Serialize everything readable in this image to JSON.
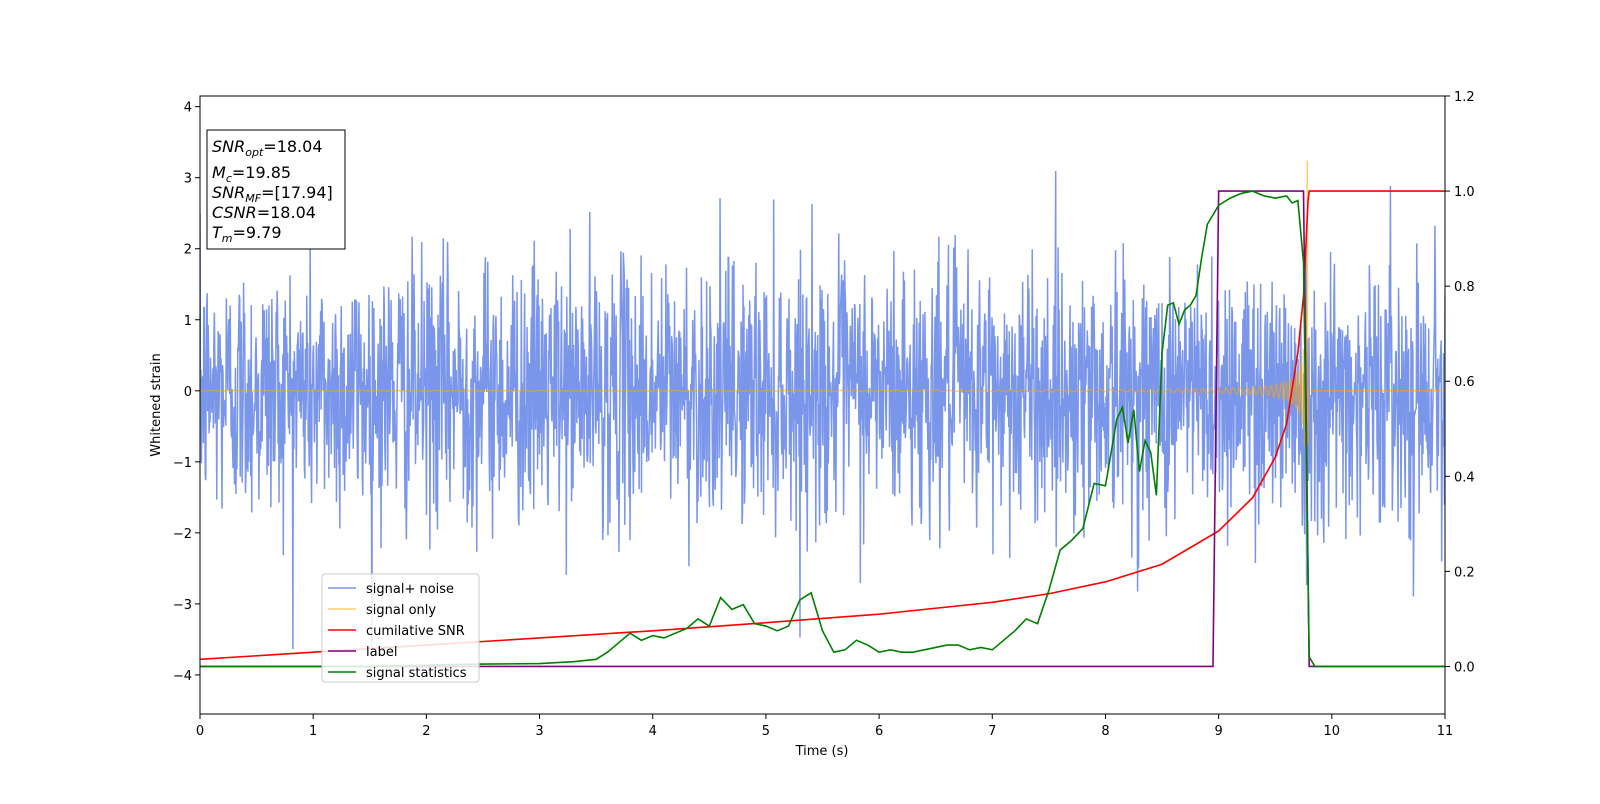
{
  "chart_data": {
    "type": "line",
    "xlabel": "Time (s)",
    "ylabel": "Whitened strain",
    "xlim": [
      0,
      11
    ],
    "ylim": [
      -4.55,
      4.15
    ],
    "y2lim": [
      -0.1,
      1.2
    ],
    "grid": false,
    "legend_position": "lower-left",
    "xticks": [
      "0",
      "1",
      "2",
      "3",
      "4",
      "5",
      "6",
      "7",
      "8",
      "9",
      "10",
      "11"
    ],
    "xtick_values": [
      0,
      1,
      2,
      3,
      4,
      5,
      6,
      7,
      8,
      9,
      10,
      11
    ],
    "yticks": [
      "4",
      "3",
      "2",
      "1",
      "0",
      "−1",
      "−2",
      "−3",
      "−4"
    ],
    "ytick_values": [
      4,
      3,
      2,
      1,
      0,
      -1,
      -2,
      -3,
      -4
    ],
    "y2ticks": [
      "1.2",
      "1.0",
      "0.8",
      "0.6",
      "0.4",
      "0.2",
      "0.0"
    ],
    "y2tick_values": [
      1.2,
      1.0,
      0.8,
      0.6,
      0.4,
      0.2,
      0.0
    ],
    "annotation": {
      "snr_opt": {
        "base": "SNR",
        "sub": "opt",
        "value": "=18.04"
      },
      "mc": {
        "base": "M",
        "sub": "c",
        "value": "=19.85"
      },
      "snr_mf": {
        "base": "SNR",
        "sub": "MF",
        "value": "=[17.94]"
      },
      "csnr": {
        "base": "CSNR",
        "sub": "",
        "value": "=18.04"
      },
      "tm": {
        "base": "T",
        "sub": "m",
        "value": "=9.79"
      }
    },
    "series": [
      {
        "name": "signal+ noise",
        "color": "#4169e1",
        "axis": "left",
        "kind": "noise",
        "sigma": 0.9,
        "peak": 3.55,
        "merger_time": 9.79
      },
      {
        "name": "signal only",
        "color": "#ffa500",
        "axis": "left",
        "kind": "chirp",
        "peak": 3.62,
        "merger_time": 9.79
      },
      {
        "name": "cumilative SNR",
        "color": "#ff0000",
        "axis": "right",
        "x": [
          0,
          1,
          2,
          3,
          4,
          5,
          6,
          7,
          7.5,
          8,
          8.5,
          9,
          9.3,
          9.5,
          9.6,
          9.7,
          9.75,
          9.79,
          9.8,
          11
        ],
        "y": [
          0.015,
          0.03,
          0.045,
          0.06,
          0.075,
          0.092,
          0.11,
          0.135,
          0.153,
          0.178,
          0.215,
          0.285,
          0.355,
          0.44,
          0.51,
          0.66,
          0.78,
          0.98,
          1.0,
          1.0
        ]
      },
      {
        "name": "label",
        "color": "#800080",
        "axis": "right",
        "x": [
          0,
          8.95,
          9.0,
          9.75,
          9.8,
          11
        ],
        "y": [
          0.0,
          0.0,
          1.0,
          1.0,
          0.0,
          0.0
        ]
      },
      {
        "name": "signal statistics",
        "color": "#008000",
        "axis": "right",
        "x": [
          0,
          0.5,
          1,
          1.5,
          2,
          2.5,
          3,
          3.3,
          3.5,
          3.6,
          3.7,
          3.8,
          3.9,
          4.0,
          4.1,
          4.2,
          4.3,
          4.4,
          4.5,
          4.6,
          4.7,
          4.8,
          4.9,
          5.0,
          5.1,
          5.2,
          5.3,
          5.4,
          5.5,
          5.6,
          5.7,
          5.8,
          5.9,
          6.0,
          6.1,
          6.2,
          6.3,
          6.4,
          6.5,
          6.6,
          6.7,
          6.8,
          6.9,
          7.0,
          7.1,
          7.2,
          7.3,
          7.4,
          7.5,
          7.6,
          7.7,
          7.8,
          7.9,
          8.0,
          8.1,
          8.15,
          8.2,
          8.25,
          8.3,
          8.35,
          8.4,
          8.45,
          8.5,
          8.55,
          8.6,
          8.65,
          8.7,
          8.75,
          8.8,
          8.85,
          8.9,
          8.95,
          9.0,
          9.1,
          9.2,
          9.3,
          9.4,
          9.5,
          9.6,
          9.65,
          9.7,
          9.75,
          9.8,
          9.85,
          9.9,
          10.0,
          11
        ],
        "y": [
          0.0,
          0.0,
          0.0,
          0.0,
          0.003,
          0.005,
          0.006,
          0.01,
          0.015,
          0.03,
          0.05,
          0.07,
          0.055,
          0.065,
          0.06,
          0.07,
          0.08,
          0.1,
          0.085,
          0.145,
          0.12,
          0.13,
          0.09,
          0.085,
          0.075,
          0.085,
          0.14,
          0.155,
          0.075,
          0.03,
          0.035,
          0.055,
          0.045,
          0.03,
          0.035,
          0.03,
          0.03,
          0.035,
          0.04,
          0.045,
          0.045,
          0.035,
          0.04,
          0.035,
          0.055,
          0.075,
          0.1,
          0.09,
          0.16,
          0.245,
          0.265,
          0.29,
          0.385,
          0.38,
          0.52,
          0.545,
          0.47,
          0.54,
          0.41,
          0.475,
          0.45,
          0.36,
          0.66,
          0.76,
          0.765,
          0.72,
          0.75,
          0.76,
          0.78,
          0.86,
          0.93,
          0.95,
          0.97,
          0.985,
          0.995,
          1.0,
          0.99,
          0.985,
          0.99,
          0.975,
          0.98,
          0.85,
          0.02,
          0.0,
          0.0,
          0.0,
          0.0
        ]
      }
    ]
  }
}
